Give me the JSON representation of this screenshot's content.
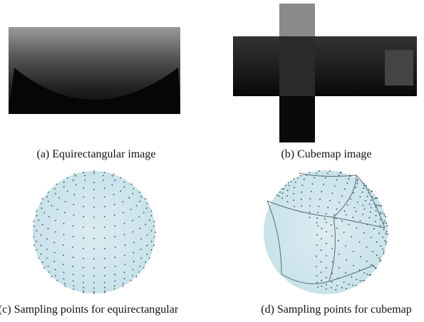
{
  "figure": {
    "panels": [
      {
        "caption": "(a) Equirectangular image"
      },
      {
        "caption": "(b) Cubemap image"
      },
      {
        "caption": "(c) Sampling points for equirectangular"
      },
      {
        "caption": "(d) Sampling points for cubemap"
      }
    ]
  }
}
